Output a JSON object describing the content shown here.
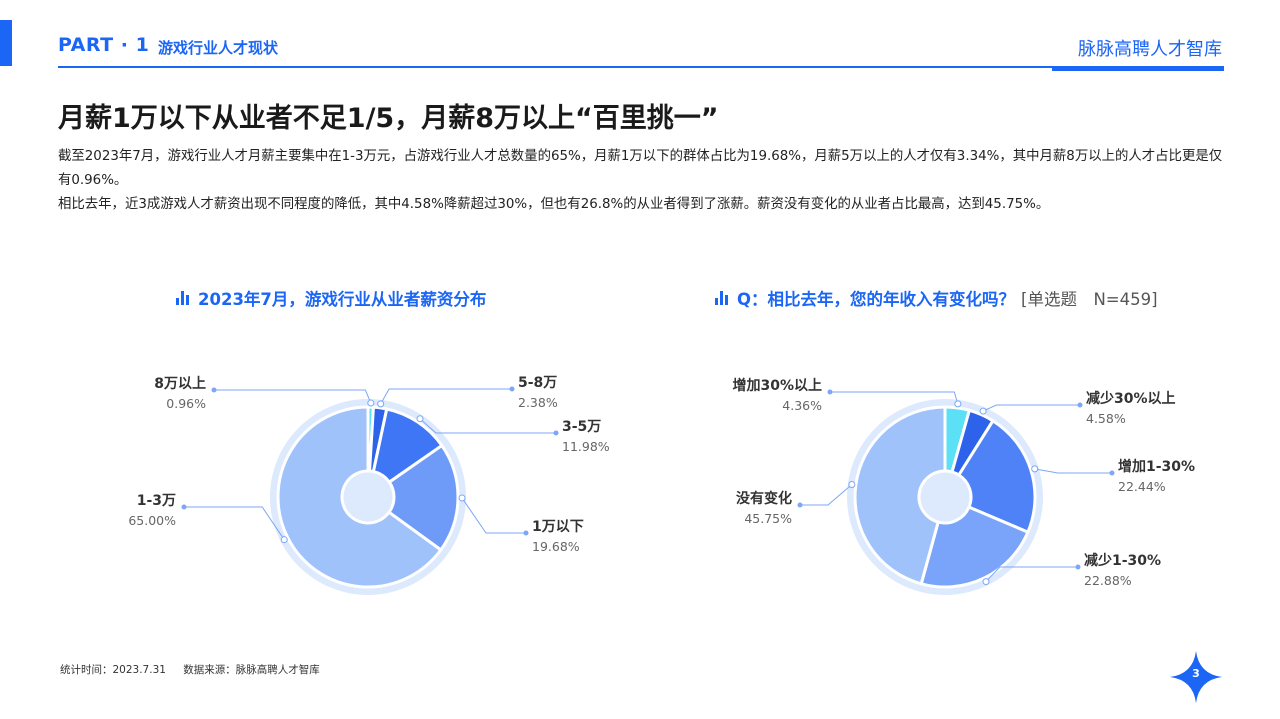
{
  "header": {
    "part": "PART · 1",
    "section": "游戏行业人才现状",
    "brand": "脉脉高聘人才智库"
  },
  "title": "月薪1万以下从业者不足1/5，月薪8万以上“百里挑一”",
  "description": [
    "截至2023年7月，游戏行业人才月薪主要集中在1-3万元，占游戏行业人才总数量的65%，月薪1万以下的群体占比为19.68%，月薪5万以上的人才仅有3.34%，其中月薪8万以上的人才占比更是仅有0.96%。",
    "相比去年，近3成游戏人才薪资出现不同程度的降低，其中4.58%降薪超过30%，但也有26.8%的从业者得到了涨薪。薪资没有变化的从业者占比最高，达到45.75%。"
  ],
  "chart_left_title": "2023年7月，游戏行业从业者薪资分布",
  "chart_right_title": "Q：相比去年，您的年收入有变化吗？",
  "chart_right_note": "[单选题　N=459]",
  "chart_data": [
    {
      "type": "pie",
      "title": "2023年7月，游戏行业从业者薪资分布",
      "slices": [
        {
          "label": "8万以上",
          "value": 0.96,
          "display": "0.96%",
          "color": "#5ce0f5"
        },
        {
          "label": "5-8万",
          "value": 2.38,
          "display": "2.38%",
          "color": "#2d63ea"
        },
        {
          "label": "3-5万",
          "value": 11.98,
          "display": "11.98%",
          "color": "#3f76f5"
        },
        {
          "label": "1万以下",
          "value": 19.68,
          "display": "19.68%",
          "color": "#6f9bf8"
        },
        {
          "label": "1-3万",
          "value": 65.0,
          "display": "65.00%",
          "color": "#9fc2fb"
        }
      ]
    },
    {
      "type": "pie",
      "title": "Q：相比去年，您的年收入有变化吗？",
      "slices": [
        {
          "label": "增加30%以上",
          "value": 4.36,
          "display": "4.36%",
          "color": "#5ce0f5"
        },
        {
          "label": "减少30%以上",
          "value": 4.58,
          "display": "4.58%",
          "color": "#2d63ea"
        },
        {
          "label": "增加1-30%",
          "value": 22.44,
          "display": "22.44%",
          "color": "#4f82f6"
        },
        {
          "label": "减少1-30%",
          "value": 22.88,
          "display": "22.88%",
          "color": "#7aa4f9"
        },
        {
          "label": "没有变化",
          "value": 45.75,
          "display": "45.75%",
          "color": "#9fc2fb"
        }
      ]
    }
  ],
  "footer": {
    "time": "统计时间：2023.7.31",
    "source": "数据来源：脉脉高聘人才智库"
  },
  "page_number": "3",
  "colors": {
    "accent": "#1b66f5",
    "leader": "#7ca6f8",
    "halo": "#dde9fd"
  }
}
